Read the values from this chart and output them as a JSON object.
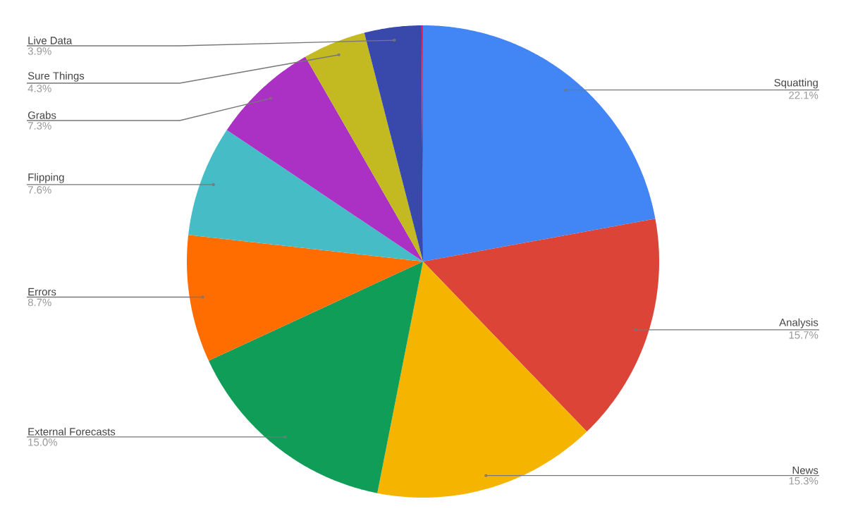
{
  "chart_data": {
    "type": "pie",
    "categories": [
      "Squatting",
      "Analysis",
      "News",
      "External Forecasts",
      "Errors",
      "Flipping",
      "Grabs",
      "Sure Things",
      "Live Data",
      null
    ],
    "values": [
      22.1,
      15.7,
      15.3,
      15.0,
      8.7,
      7.6,
      7.3,
      4.3,
      3.9,
      0.1
    ],
    "value_labels": [
      "22.1%",
      "15.7%",
      "15.3%",
      "15.0%",
      "8.7%",
      "7.6%",
      "7.3%",
      "4.3%",
      "3.9%",
      null
    ],
    "colors": [
      "#4285f4",
      "#db4437",
      "#f4b400",
      "#0f9d58",
      "#ff6d00",
      "#46bdc6",
      "#ab30c4",
      "#c2ba20",
      "#3949ab",
      "#e91e63"
    ]
  }
}
